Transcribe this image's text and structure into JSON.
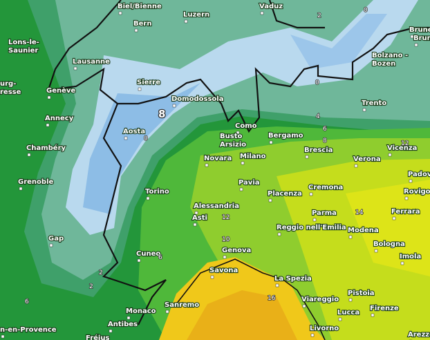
{
  "cities": [
    [
      "Biel/Bienne"
    ],
    [
      "Luzern"
    ],
    [
      "Vaduz"
    ],
    [
      "Bern"
    ],
    [
      "Brune"
    ],
    [
      "Brun"
    ],
    [
      "Lons-le-",
      "Saunier"
    ],
    [
      "Lausanne"
    ],
    [
      "Bolzano -",
      "Bozen"
    ],
    [
      "urg-",
      "resse"
    ],
    [
      "Genève"
    ],
    [
      "Sierre"
    ],
    [
      "Domodossola"
    ],
    [
      "Trento"
    ],
    [
      "Annecy"
    ],
    [
      "Aosta"
    ],
    [
      "Como"
    ],
    [
      "Busto",
      "Arsizio"
    ],
    [
      "Bergamo"
    ],
    [
      "Chambéry"
    ],
    [
      "Brescia"
    ],
    [
      "Vicenza"
    ],
    [
      "Novara"
    ],
    [
      "Milano"
    ],
    [
      "Verona"
    ],
    [
      "Padova"
    ],
    [
      "Grenoble"
    ],
    [
      "Pavia"
    ],
    [
      "Cremona"
    ],
    [
      "Rovigo"
    ],
    [
      "Torino"
    ],
    [
      "Placenza"
    ],
    [
      "Alessandria"
    ],
    [
      "Ferrara"
    ],
    [
      "Asti"
    ],
    [
      "Parma"
    ],
    [
      "Reggio nell'Emilia"
    ],
    [
      "Modena"
    ],
    [
      "Gap"
    ],
    [
      "Bologna"
    ],
    [
      "Genova"
    ],
    [
      "Cuneo"
    ],
    [
      "Imola"
    ],
    [
      "Savona"
    ],
    [
      "La Spezia"
    ],
    [
      "Pistoia"
    ],
    [
      "Viareggio"
    ],
    [
      "Sanremo"
    ],
    [
      "Firenze"
    ],
    [
      "Monaco"
    ],
    [
      "Lucca"
    ],
    [
      "Antibes"
    ],
    [
      "Livorno"
    ],
    [
      "Arezzo"
    ],
    [
      "n-en-Provence"
    ],
    [
      "Fréjus"
    ]
  ],
  "contour_labels": [
    8,
    2,
    0,
    0,
    4,
    6,
    8,
    0,
    12,
    14,
    12,
    10,
    6,
    2,
    2,
    6,
    16
  ]
}
